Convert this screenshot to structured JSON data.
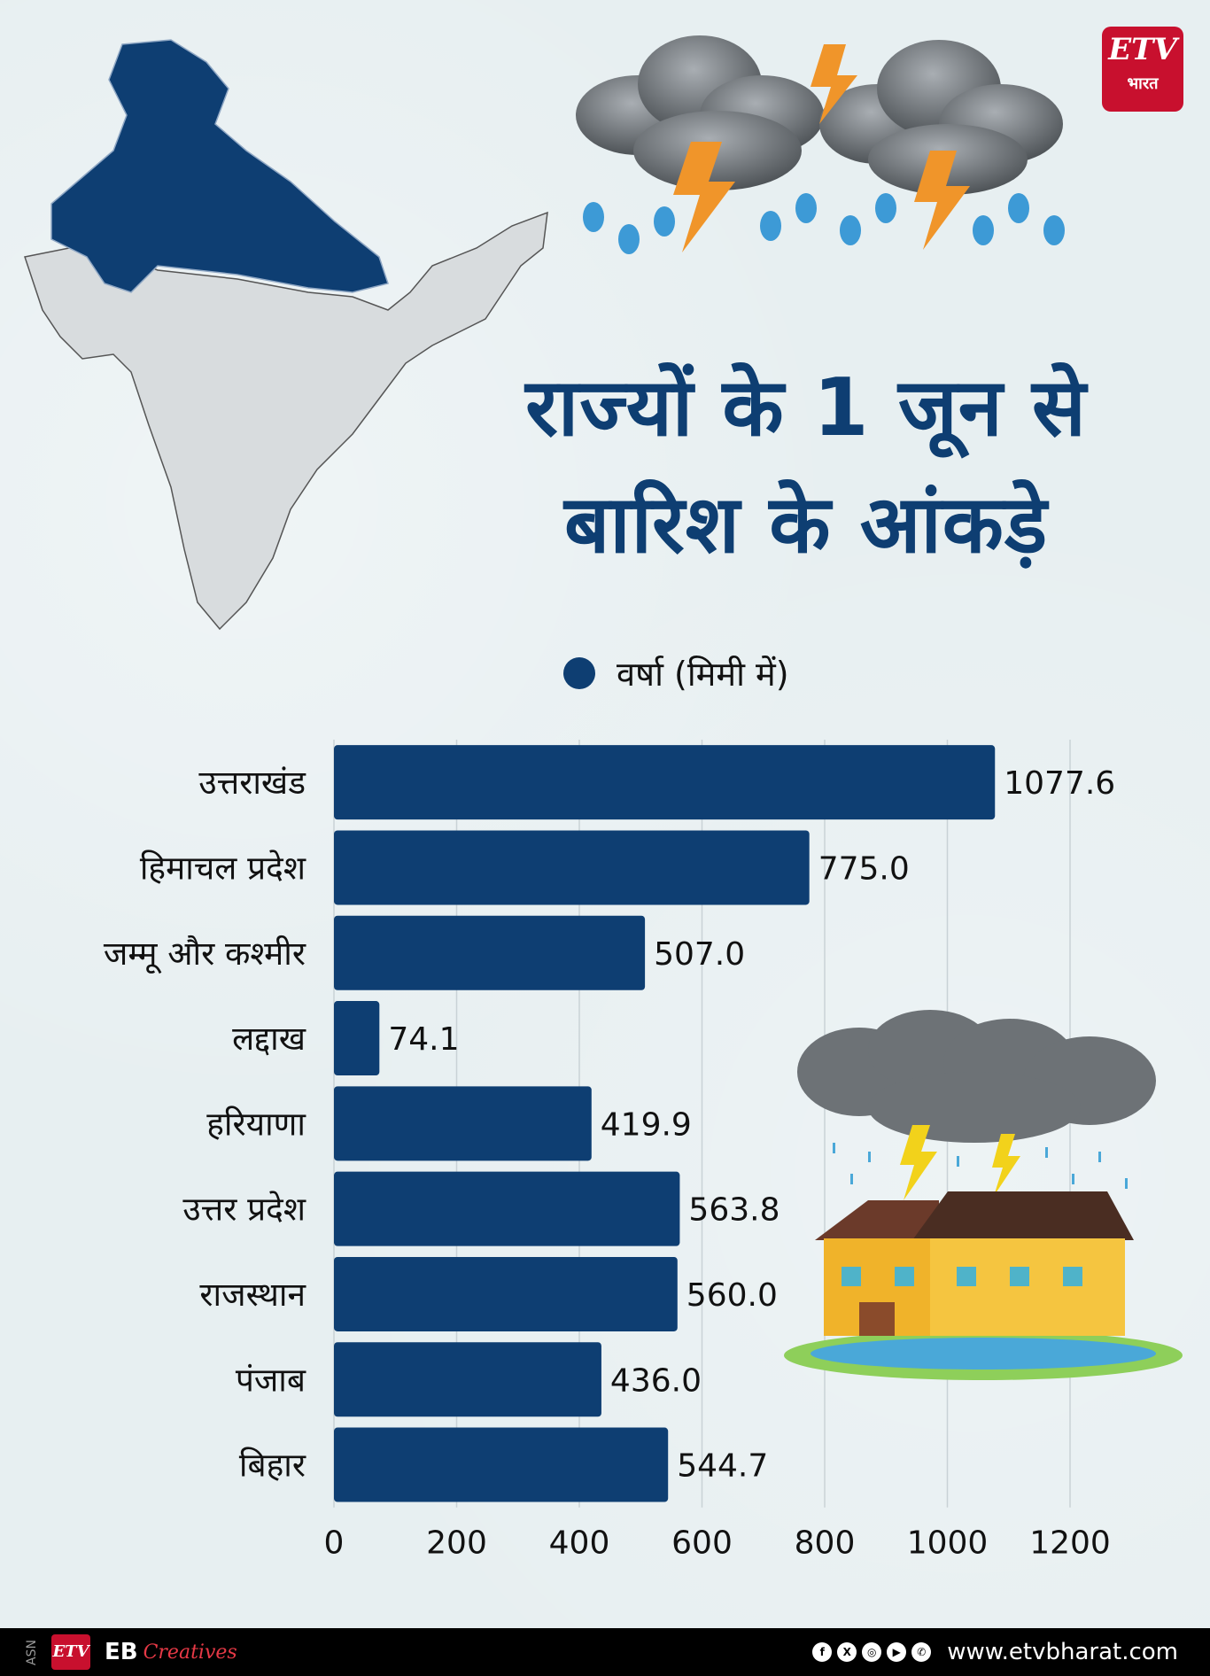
{
  "logo": {
    "brand": "ETV",
    "sub": "भारत"
  },
  "title_line1": "राज्यों के 1 जून से",
  "title_line2": "बारिश के आंकड़े",
  "chart_data": {
    "type": "bar",
    "orientation": "horizontal",
    "title": "राज्यों के 1 जून से बारिश के आंकड़े",
    "legend": "वर्षा (मिमी में)",
    "categories": [
      "उत्तराखंड",
      "हिमाचल प्रदेश",
      "जम्मू और कश्मीर",
      "लद्दाख",
      "हरियाणा",
      "उत्तर प्रदेश",
      "राजस्थान",
      "पंजाब",
      "बिहार"
    ],
    "values": [
      1077.6,
      775.0,
      507.0,
      74.1,
      419.9,
      563.8,
      560.0,
      436.0,
      544.7
    ],
    "value_labels": [
      "1077.6",
      "775.0",
      "507.0",
      "74.1",
      "419.9",
      "563.8",
      "560.0",
      "436.0",
      "544.7"
    ],
    "xlim": [
      0,
      1200
    ],
    "xticks": [
      0,
      200,
      400,
      600,
      800,
      1000,
      1200
    ],
    "grid": true,
    "bar_color": "#0e3e72"
  },
  "footer": {
    "code": "ASN",
    "logo": "ETV",
    "eb": "EB",
    "creatives": "Creatives",
    "social_icons": [
      "facebook-icon",
      "x-icon",
      "instagram-icon",
      "youtube-icon",
      "whatsapp-icon"
    ],
    "website": "www.etvbharat.com"
  },
  "colors": {
    "accent": "#0e3e72",
    "background": "#e7eff1",
    "map_gray": "#d8dcde",
    "brand_red": "#c8102e"
  }
}
